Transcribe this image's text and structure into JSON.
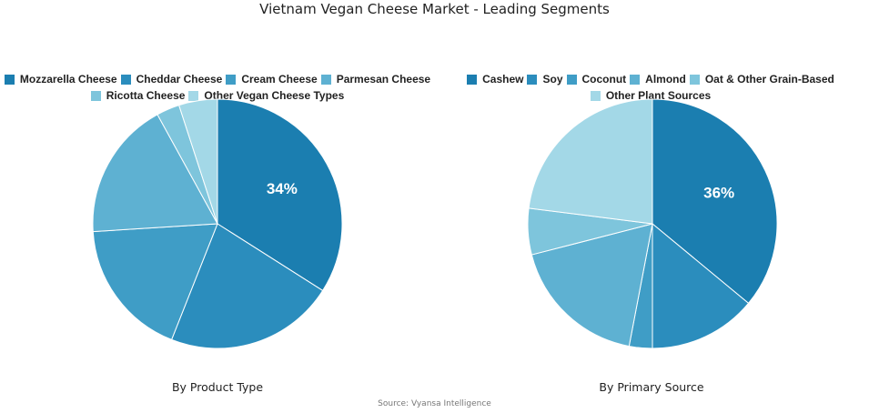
{
  "title": "Vietnam Vegan Cheese Market - Leading Segments",
  "source": "Source: Vyansa Intelligence",
  "chart_data": [
    {
      "type": "pie",
      "subtitle": "By Product Type",
      "labels": [
        "Mozzarella Cheese",
        "Cheddar Cheese",
        "Cream Cheese",
        "Parmesan Cheese",
        "Ricotta Cheese",
        "Other Vegan Cheese Types"
      ],
      "values": [
        34,
        22,
        18,
        18,
        3,
        5
      ],
      "colors": [
        "#1b7eb0",
        "#2b8dbd",
        "#3f9dc6",
        "#5eb1d2",
        "#7ec5dc",
        "#a3d8e7"
      ],
      "data_labels": [
        "34%",
        "",
        "",
        "",
        "",
        ""
      ],
      "legend": "top"
    },
    {
      "type": "pie",
      "subtitle": "By Primary Source",
      "labels": [
        "Cashew",
        "Soy",
        "Coconut",
        "Almond",
        "Oat & Other Grain-Based",
        "Other Plant Sources"
      ],
      "values": [
        36,
        14,
        3,
        18,
        6,
        23
      ],
      "colors": [
        "#1b7eb0",
        "#2b8dbd",
        "#3f9dc6",
        "#5eb1d2",
        "#7ec5dc",
        "#a3d8e7"
      ],
      "data_labels": [
        "36%",
        "",
        "",
        "",
        "",
        ""
      ],
      "legend": "top"
    }
  ]
}
